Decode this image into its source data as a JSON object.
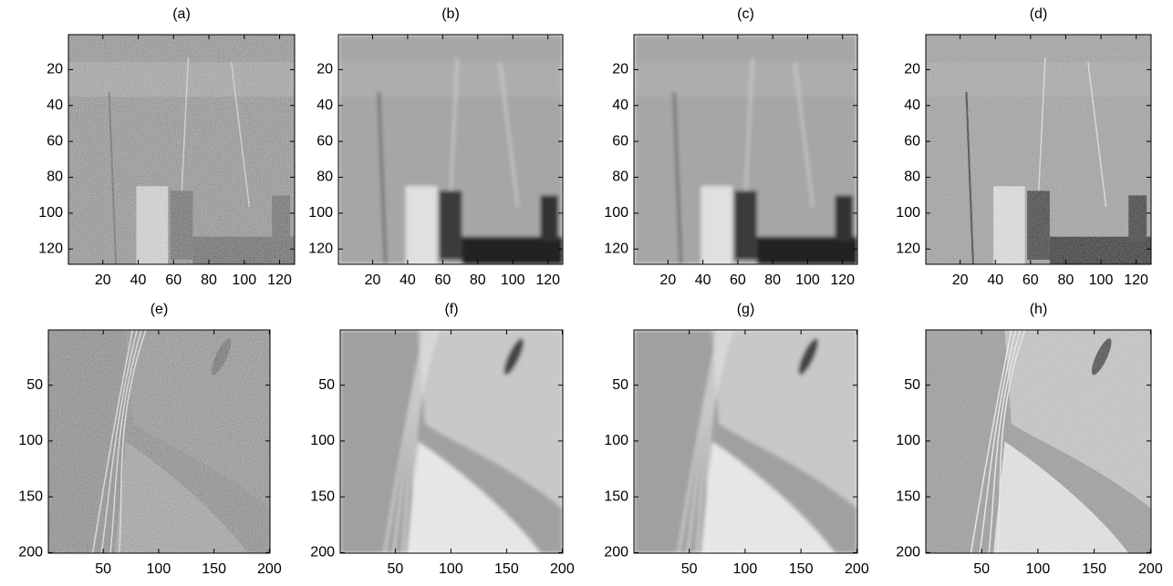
{
  "chart_data": [
    {
      "type": "image",
      "title": "(a)",
      "xlim": [
        0.5,
        128.5
      ],
      "ylim": [
        0.5,
        128.5
      ],
      "xticks": [
        20,
        40,
        60,
        80,
        100,
        120
      ],
      "yticks": [
        20,
        40,
        60,
        80,
        100,
        120
      ]
    },
    {
      "type": "image",
      "title": "(b)",
      "xlim": [
        0.5,
        128.5
      ],
      "ylim": [
        0.5,
        128.5
      ],
      "xticks": [
        20,
        40,
        60,
        80,
        100,
        120
      ],
      "yticks": [
        20,
        40,
        60,
        80,
        100,
        120
      ]
    },
    {
      "type": "image",
      "title": "(c)",
      "xlim": [
        0.5,
        128.5
      ],
      "ylim": [
        0.5,
        128.5
      ],
      "xticks": [
        20,
        40,
        60,
        80,
        100,
        120
      ],
      "yticks": [
        20,
        40,
        60,
        80,
        100,
        120
      ]
    },
    {
      "type": "image",
      "title": "(d)",
      "xlim": [
        0.5,
        128.5
      ],
      "ylim": [
        0.5,
        128.5
      ],
      "xticks": [
        20,
        40,
        60,
        80,
        100,
        120
      ],
      "yticks": [
        20,
        40,
        60,
        80,
        100,
        120
      ]
    },
    {
      "type": "image",
      "title": "(e)",
      "xlim": [
        0.5,
        200.5
      ],
      "ylim": [
        0.5,
        200.5
      ],
      "xticks": [
        50,
        100,
        150,
        200
      ],
      "yticks": [
        50,
        100,
        150,
        200
      ]
    },
    {
      "type": "image",
      "title": "(f)",
      "xlim": [
        0.5,
        200.5
      ],
      "ylim": [
        0.5,
        200.5
      ],
      "xticks": [
        50,
        100,
        150,
        200
      ],
      "yticks": [
        50,
        100,
        150,
        200
      ]
    },
    {
      "type": "image",
      "title": "(g)",
      "xlim": [
        0.5,
        200.5
      ],
      "ylim": [
        0.5,
        200.5
      ],
      "xticks": [
        50,
        100,
        150,
        200
      ],
      "yticks": [
        50,
        100,
        150,
        200
      ]
    },
    {
      "type": "image",
      "title": "(h)",
      "xlim": [
        0.5,
        200.5
      ],
      "ylim": [
        0.5,
        200.5
      ],
      "xticks": [
        50,
        100,
        150,
        200
      ],
      "yticks": [
        50,
        100,
        150,
        200
      ]
    }
  ]
}
